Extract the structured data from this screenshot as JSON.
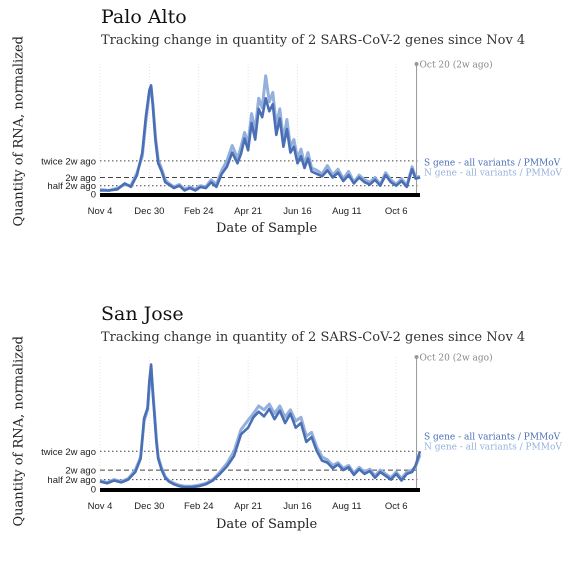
{
  "chart_data": [
    {
      "type": "line",
      "title": "Palo Alto",
      "subtitle": "Tracking change in quantity of 2 SARS-CoV-2 genes since Nov 4",
      "xlabel": "Date of Sample",
      "ylabel": "Quantity of RNA, normalized",
      "x_ticks": [
        "Nov 4",
        "Dec 30",
        "Feb 24",
        "Apr 21",
        "Jun 16",
        "Aug 11",
        "Oct 6"
      ],
      "y_ticks": [
        "0",
        "half 2w ago",
        "2w ago",
        "twice 2w ago"
      ],
      "marker_label": "Oct 20 (2w ago)",
      "day_range": [
        0,
        363
      ],
      "ylim": [
        0,
        11
      ],
      "reference_2w_ago": 1.4,
      "series": [
        {
          "name": "S gene - all variants / PMMoV",
          "color": "#4a6fb5",
          "x": [
            0,
            10,
            20,
            28,
            35,
            42,
            48,
            52,
            56,
            58,
            60,
            63,
            66,
            70,
            74,
            78,
            84,
            90,
            96,
            102,
            108,
            114,
            120,
            126,
            132,
            138,
            144,
            150,
            156,
            160,
            164,
            168,
            172,
            176,
            180,
            184,
            188,
            192,
            196,
            200,
            204,
            208,
            212,
            216,
            220,
            224,
            228,
            232,
            236,
            240,
            246,
            252,
            258,
            264,
            270,
            276,
            282,
            288,
            294,
            300,
            306,
            312,
            318,
            324,
            330,
            336,
            342,
            348,
            354,
            358,
            363
          ],
          "y": [
            0.3,
            0.3,
            0.4,
            0.9,
            0.6,
            1.6,
            3.5,
            6.5,
            8.8,
            9.2,
            7.4,
            4.5,
            2.6,
            1.9,
            1.0,
            0.8,
            0.5,
            0.7,
            0.3,
            0.5,
            0.3,
            0.6,
            0.5,
            1.0,
            0.6,
            1.7,
            2.3,
            3.5,
            2.6,
            3.4,
            4.7,
            3.7,
            6.0,
            4.6,
            7.2,
            6.5,
            8.1,
            7.0,
            7.6,
            5.0,
            6.4,
            4.0,
            5.5,
            3.5,
            4.0,
            2.6,
            3.2,
            2.2,
            3.0,
            1.9,
            1.7,
            1.5,
            2.0,
            1.4,
            1.8,
            1.1,
            1.6,
            0.9,
            1.4,
            1.0,
            0.8,
            1.2,
            0.7,
            1.6,
            1.0,
            0.7,
            1.1,
            0.6,
            2.1,
            1.3,
            1.4
          ]
        },
        {
          "name": "N gene - all variants / PMMoV",
          "color": "#94b0dd",
          "x": [
            0,
            10,
            20,
            28,
            35,
            42,
            48,
            52,
            56,
            58,
            60,
            63,
            66,
            70,
            74,
            78,
            84,
            90,
            96,
            102,
            108,
            114,
            120,
            126,
            132,
            138,
            144,
            150,
            156,
            160,
            164,
            168,
            172,
            176,
            180,
            184,
            188,
            192,
            196,
            200,
            204,
            208,
            212,
            216,
            220,
            224,
            228,
            232,
            236,
            240,
            246,
            252,
            258,
            264,
            270,
            276,
            282,
            288,
            294,
            300,
            306,
            312,
            318,
            324,
            330,
            336,
            342,
            348,
            354,
            358,
            363
          ],
          "y": [
            0.4,
            0.3,
            0.5,
            0.8,
            0.7,
            1.8,
            3.2,
            6.1,
            8.6,
            9.0,
            7.6,
            4.8,
            2.9,
            2.1,
            1.2,
            0.9,
            0.6,
            0.8,
            0.4,
            0.6,
            0.4,
            0.7,
            0.6,
            1.2,
            0.8,
            2.0,
            2.8,
            4.1,
            3.0,
            4.0,
            5.2,
            4.3,
            6.8,
            5.4,
            8.1,
            7.3,
            10.0,
            7.8,
            8.6,
            5.8,
            7.2,
            4.6,
            6.3,
            4.0,
            4.6,
            3.0,
            3.8,
            2.5,
            3.5,
            2.2,
            2.0,
            1.7,
            2.4,
            1.6,
            2.1,
            1.3,
            1.9,
            1.0,
            1.6,
            1.2,
            1.0,
            1.4,
            0.8,
            1.8,
            1.2,
            0.8,
            1.3,
            0.7,
            2.3,
            1.4,
            1.5
          ]
        }
      ]
    },
    {
      "type": "line",
      "title": "San Jose",
      "subtitle": "Tracking change in quantity of 2 SARS-CoV-2 genes since Nov 4",
      "xlabel": "Date of Sample",
      "ylabel": "Quantity of RNA, normalized",
      "x_ticks": [
        "Nov 4",
        "Dec 30",
        "Feb 24",
        "Apr 21",
        "Jun 16",
        "Aug 11",
        "Oct 6"
      ],
      "y_ticks": [
        "0",
        "half 2w ago",
        "2w ago",
        "twice 2w ago"
      ],
      "marker_label": "Oct 20 (2w ago)",
      "day_range": [
        0,
        363
      ],
      "ylim": [
        0,
        14
      ],
      "reference_2w_ago": 2.0,
      "series": [
        {
          "name": "S gene - all variants / PMMoV",
          "color": "#4a6fb5",
          "x": [
            0,
            8,
            16,
            24,
            32,
            40,
            46,
            50,
            54,
            56,
            58,
            60,
            62,
            64,
            66,
            70,
            74,
            78,
            84,
            90,
            96,
            104,
            112,
            120,
            128,
            136,
            144,
            152,
            160,
            168,
            174,
            180,
            186,
            192,
            198,
            204,
            210,
            216,
            222,
            228,
            234,
            240,
            246,
            252,
            258,
            264,
            270,
            276,
            282,
            288,
            294,
            300,
            306,
            312,
            318,
            324,
            330,
            336,
            342,
            348,
            354,
            358,
            363
          ],
          "y": [
            0.8,
            0.6,
            0.9,
            0.7,
            1.0,
            1.8,
            3.2,
            7.5,
            8.6,
            11.5,
            13.2,
            10.0,
            7.5,
            5.0,
            3.2,
            2.0,
            1.2,
            0.8,
            0.5,
            0.3,
            0.2,
            0.2,
            0.3,
            0.5,
            0.9,
            1.6,
            2.4,
            3.5,
            5.8,
            6.5,
            7.6,
            8.2,
            7.7,
            8.5,
            7.4,
            8.3,
            7.0,
            8.0,
            6.5,
            7.0,
            5.0,
            5.5,
            4.0,
            3.0,
            2.8,
            2.2,
            2.6,
            2.0,
            2.3,
            1.5,
            2.1,
            1.6,
            1.9,
            1.2,
            1.8,
            1.4,
            1.0,
            1.6,
            0.9,
            1.6,
            1.8,
            2.5,
            4.0
          ]
        },
        {
          "name": "N gene - all variants / PMMoV",
          "color": "#94b0dd",
          "x": [
            0,
            8,
            16,
            24,
            32,
            40,
            46,
            50,
            54,
            56,
            58,
            60,
            62,
            64,
            66,
            70,
            74,
            78,
            84,
            90,
            96,
            104,
            112,
            120,
            128,
            136,
            144,
            152,
            160,
            168,
            174,
            180,
            186,
            192,
            198,
            204,
            210,
            216,
            222,
            228,
            234,
            240,
            246,
            252,
            258,
            264,
            270,
            276,
            282,
            288,
            294,
            300,
            306,
            312,
            318,
            324,
            330,
            336,
            342,
            348,
            354,
            358,
            363
          ],
          "y": [
            0.9,
            0.7,
            1.0,
            0.8,
            1.1,
            2.0,
            3.4,
            7.2,
            8.4,
            11.0,
            12.8,
            10.3,
            7.8,
            5.3,
            3.4,
            2.2,
            1.3,
            0.9,
            0.6,
            0.4,
            0.3,
            0.3,
            0.4,
            0.6,
            1.0,
            1.8,
            2.7,
            4.0,
            6.3,
            7.3,
            8.0,
            8.8,
            8.4,
            9.0,
            8.0,
            8.8,
            7.6,
            8.4,
            7.2,
            7.6,
            5.6,
            6.0,
            4.4,
            3.4,
            3.1,
            2.5,
            2.8,
            2.2,
            2.5,
            1.7,
            2.3,
            1.8,
            2.1,
            1.4,
            2.0,
            1.6,
            1.2,
            1.8,
            1.1,
            1.8,
            2.0,
            2.4,
            3.6
          ]
        }
      ]
    }
  ]
}
